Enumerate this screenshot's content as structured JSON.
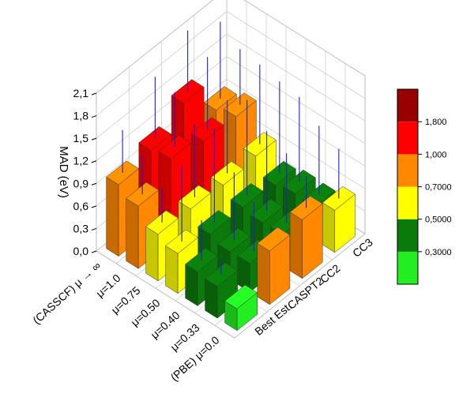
{
  "chart_data": {
    "type": "bar3d",
    "title": "",
    "zlabel": "MAD (eV)",
    "zlim": [
      0,
      2.1
    ],
    "z_ticks": [
      "0,0",
      "0,3",
      "0,6",
      "0,9",
      "1,2",
      "1,5",
      "1,8",
      "2,1"
    ],
    "x_categories": [
      "(PBE) μ=0.0",
      "μ=0.33",
      "μ=0.40",
      "μ=0.50",
      "μ=0.75",
      "μ=1.0",
      "(CASSCF) μ → ∞"
    ],
    "y_categories": [
      "Best Est.",
      "CASPT2",
      "CC2",
      "CC3"
    ],
    "values": [
      [
        0.29,
        0.71,
        0.78,
        0.56
      ],
      [
        0.42,
        0.38,
        0.42,
        0.44
      ],
      [
        0.45,
        0.37,
        0.41,
        0.45
      ],
      [
        0.53,
        0.44,
        0.45,
        0.4
      ],
      [
        0.62,
        0.61,
        0.58,
        0.62
      ],
      [
        0.83,
        1.11,
        1.0,
        0.98
      ],
      [
        0.95,
        1.06,
        1.34,
        0.9
      ]
    ],
    "error_bars_top": [
      [
        null,
        null,
        1.2,
        1.22
      ],
      [
        0.62,
        1.04,
        1.34,
        1.36
      ],
      [
        0.98,
        1.27,
        1.47,
        1.58
      ],
      [
        1.55,
        1.69,
        1.72,
        1.62
      ],
      [
        1.07,
        1.58,
        1.55,
        1.68
      ],
      [
        1.34,
        1.84,
        1.96,
        1.72
      ],
      [
        1.52,
        1.88,
        2.15,
        1.92
      ]
    ],
    "error_bar_color": "#1f1fd6",
    "colorscale": {
      "labels": [
        "0,3000",
        "0,5000",
        "0,7000",
        "1,000",
        "1,800"
      ],
      "colors": [
        "#22ee22",
        "#0a7a0a",
        "#ffff00",
        "#ff8800",
        "#ff0000",
        "#990000"
      ]
    }
  }
}
